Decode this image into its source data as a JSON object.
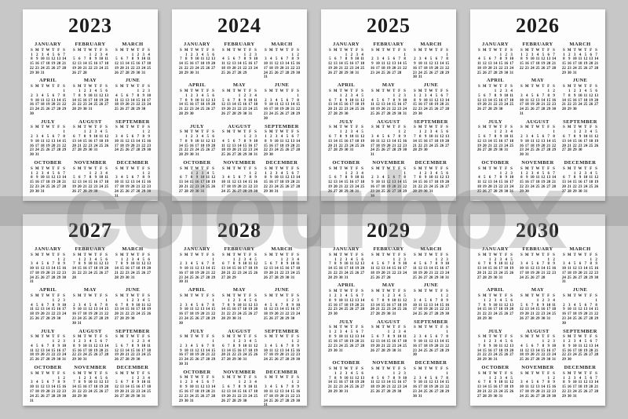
{
  "colors": {
    "background": "#c7c7c7",
    "card": "#fdfdfd",
    "text": "#1c1c1c",
    "watermark": "rgba(125,125,125,0.30)"
  },
  "watermark": {
    "text": "colourbox"
  },
  "weekday_header": [
    "S",
    "M",
    "T",
    "W",
    "T",
    "F",
    "S"
  ],
  "month_names": [
    "JANUARY",
    "FEBRUARY",
    "MARCH",
    "APRIL",
    "MAY",
    "JUNE",
    "JULY",
    "AUGUST",
    "SEPTEMBER",
    "OCTOBER",
    "NOVEMBER",
    "DECEMBER"
  ],
  "years": [
    {
      "label": "2023",
      "months": [
        {
          "start": 0,
          "days": 31
        },
        {
          "start": 3,
          "days": 28
        },
        {
          "start": 3,
          "days": 31
        },
        {
          "start": 6,
          "days": 30
        },
        {
          "start": 1,
          "days": 31
        },
        {
          "start": 4,
          "days": 30
        },
        {
          "start": 6,
          "days": 31
        },
        {
          "start": 2,
          "days": 31
        },
        {
          "start": 5,
          "days": 30
        },
        {
          "start": 0,
          "days": 31
        },
        {
          "start": 3,
          "days": 30
        },
        {
          "start": 5,
          "days": 31
        }
      ]
    },
    {
      "label": "2024",
      "months": [
        {
          "start": 1,
          "days": 31
        },
        {
          "start": 4,
          "days": 29
        },
        {
          "start": 5,
          "days": 31
        },
        {
          "start": 1,
          "days": 30
        },
        {
          "start": 3,
          "days": 31
        },
        {
          "start": 6,
          "days": 30
        },
        {
          "start": 1,
          "days": 31
        },
        {
          "start": 4,
          "days": 31
        },
        {
          "start": 0,
          "days": 30
        },
        {
          "start": 2,
          "days": 31
        },
        {
          "start": 5,
          "days": 30
        },
        {
          "start": 0,
          "days": 31
        }
      ]
    },
    {
      "label": "2025",
      "months": [
        {
          "start": 3,
          "days": 31
        },
        {
          "start": 6,
          "days": 28
        },
        {
          "start": 6,
          "days": 31
        },
        {
          "start": 2,
          "days": 30
        },
        {
          "start": 4,
          "days": 31
        },
        {
          "start": 0,
          "days": 30
        },
        {
          "start": 2,
          "days": 31
        },
        {
          "start": 5,
          "days": 31
        },
        {
          "start": 1,
          "days": 30
        },
        {
          "start": 3,
          "days": 31
        },
        {
          "start": 6,
          "days": 30
        },
        {
          "start": 1,
          "days": 31
        }
      ]
    },
    {
      "label": "2026",
      "months": [
        {
          "start": 4,
          "days": 31
        },
        {
          "start": 0,
          "days": 28
        },
        {
          "start": 0,
          "days": 31
        },
        {
          "start": 3,
          "days": 30
        },
        {
          "start": 5,
          "days": 31
        },
        {
          "start": 1,
          "days": 30
        },
        {
          "start": 3,
          "days": 31
        },
        {
          "start": 6,
          "days": 31
        },
        {
          "start": 2,
          "days": 30
        },
        {
          "start": 4,
          "days": 31
        },
        {
          "start": 0,
          "days": 30
        },
        {
          "start": 2,
          "days": 31
        }
      ]
    },
    {
      "label": "2027",
      "months": [
        {
          "start": 5,
          "days": 31
        },
        {
          "start": 1,
          "days": 28
        },
        {
          "start": 1,
          "days": 31
        },
        {
          "start": 4,
          "days": 30
        },
        {
          "start": 6,
          "days": 31
        },
        {
          "start": 2,
          "days": 30
        },
        {
          "start": 4,
          "days": 31
        },
        {
          "start": 0,
          "days": 31
        },
        {
          "start": 3,
          "days": 30
        },
        {
          "start": 5,
          "days": 31
        },
        {
          "start": 1,
          "days": 30
        },
        {
          "start": 3,
          "days": 31
        }
      ]
    },
    {
      "label": "2028",
      "months": [
        {
          "start": 6,
          "days": 31
        },
        {
          "start": 2,
          "days": 29
        },
        {
          "start": 3,
          "days": 31
        },
        {
          "start": 6,
          "days": 30
        },
        {
          "start": 1,
          "days": 31
        },
        {
          "start": 4,
          "days": 30
        },
        {
          "start": 6,
          "days": 31
        },
        {
          "start": 2,
          "days": 31
        },
        {
          "start": 5,
          "days": 30
        },
        {
          "start": 0,
          "days": 31
        },
        {
          "start": 3,
          "days": 30
        },
        {
          "start": 5,
          "days": 31
        }
      ]
    },
    {
      "label": "2029",
      "months": [
        {
          "start": 1,
          "days": 31
        },
        {
          "start": 4,
          "days": 28
        },
        {
          "start": 4,
          "days": 31
        },
        {
          "start": 0,
          "days": 30
        },
        {
          "start": 2,
          "days": 31
        },
        {
          "start": 5,
          "days": 30
        },
        {
          "start": 0,
          "days": 31
        },
        {
          "start": 3,
          "days": 31
        },
        {
          "start": 6,
          "days": 30
        },
        {
          "start": 1,
          "days": 31
        },
        {
          "start": 4,
          "days": 30
        },
        {
          "start": 6,
          "days": 31
        }
      ]
    },
    {
      "label": "2030",
      "months": [
        {
          "start": 2,
          "days": 31
        },
        {
          "start": 5,
          "days": 28
        },
        {
          "start": 5,
          "days": 31
        },
        {
          "start": 1,
          "days": 30
        },
        {
          "start": 3,
          "days": 31
        },
        {
          "start": 6,
          "days": 30
        },
        {
          "start": 1,
          "days": 31
        },
        {
          "start": 4,
          "days": 31
        },
        {
          "start": 0,
          "days": 30
        },
        {
          "start": 2,
          "days": 31
        },
        {
          "start": 5,
          "days": 30
        },
        {
          "start": 0,
          "days": 31
        }
      ]
    }
  ]
}
